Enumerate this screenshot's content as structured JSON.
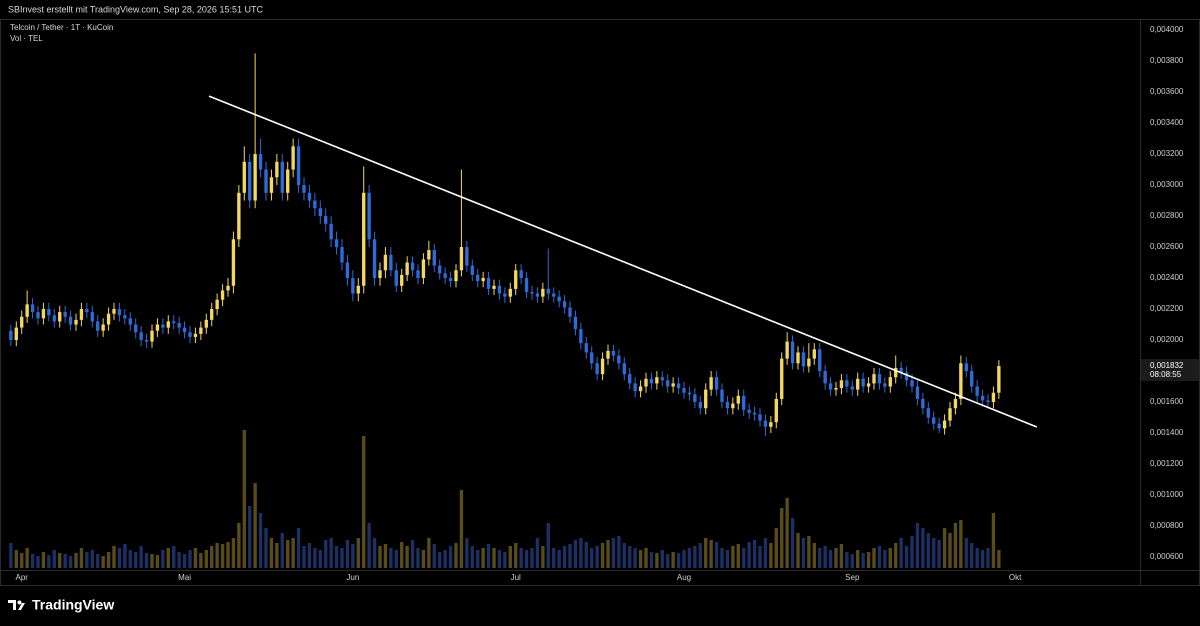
{
  "header": {
    "credit": "SBInvest erstellt mit TradingView.com, Sep 28, 2026 15:51 UTC"
  },
  "footer": {
    "brand": "TradingView"
  },
  "chart_data": {
    "type": "candlestick",
    "title": "Telcoin / Tether · 1T · KuCoin",
    "volume_label": "Vol · TEL",
    "up_color": "#f3d75e",
    "down_color": "#2e6bd9",
    "volume_up_color": "#5a4c1a",
    "volume_down_color": "#1d2f63",
    "trendline_color": "#ffffff",
    "xlim": [
      -2,
      208
    ],
    "xticks": [
      {
        "value": 2,
        "label": "Apr"
      },
      {
        "value": 32,
        "label": "Mai"
      },
      {
        "value": 63,
        "label": "Jun"
      },
      {
        "value": 93,
        "label": "Jul"
      },
      {
        "value": 124,
        "label": "Aug"
      },
      {
        "value": 155,
        "label": "Sep"
      },
      {
        "value": 185,
        "label": "Okt"
      }
    ],
    "ylim": [
      0.000516,
      0.004065
    ],
    "yticks": [
      {
        "value": 0.0006,
        "label": "0,000600"
      },
      {
        "value": 0.0008,
        "label": "0,000800"
      },
      {
        "value": 0.001,
        "label": "0,001000"
      },
      {
        "value": 0.0012,
        "label": "0,001200"
      },
      {
        "value": 0.0014,
        "label": "0,001400"
      },
      {
        "value": 0.0016,
        "label": "0,001600"
      },
      {
        "value": 0.0018,
        "label": "0,001800"
      },
      {
        "value": 0.002,
        "label": "0,002000"
      },
      {
        "value": 0.0022,
        "label": "0,002200"
      },
      {
        "value": 0.0024,
        "label": "0,002400"
      },
      {
        "value": 0.0026,
        "label": "0,002600"
      },
      {
        "value": 0.0028,
        "label": "0,002800"
      },
      {
        "value": 0.003,
        "label": "0,003000"
      },
      {
        "value": 0.0032,
        "label": "0,003200"
      },
      {
        "value": 0.0034,
        "label": "0,003400"
      },
      {
        "value": 0.0036,
        "label": "0,003600"
      },
      {
        "value": 0.0038,
        "label": "0,003800"
      },
      {
        "value": 0.004,
        "label": "0,004000"
      }
    ],
    "grid": false,
    "last_price": {
      "value": 0.001832,
      "label": "0,001832"
    },
    "countdown": "08:08:55",
    "trendline": {
      "start": [
        36.5,
        0.003574
      ],
      "end": [
        189,
        0.001439
      ]
    },
    "open": [
      0.00206,
      0.002,
      0.00208,
      0.00215,
      0.00223,
      0.00218,
      0.00214,
      0.0022,
      0.00216,
      0.00212,
      0.00218,
      0.00215,
      0.0021,
      0.00213,
      0.0022,
      0.00218,
      0.00212,
      0.00206,
      0.0021,
      0.00217,
      0.0022,
      0.00216,
      0.00214,
      0.0021,
      0.00205,
      0.002,
      0.00199,
      0.00206,
      0.0021,
      0.00208,
      0.00212,
      0.00211,
      0.00208,
      0.00205,
      0.00202,
      0.00204,
      0.00208,
      0.00213,
      0.0022,
      0.00226,
      0.00232,
      0.00235,
      0.00265,
      0.00295,
      0.00315,
      0.0029,
      0.0032,
      0.0031,
      0.00295,
      0.00305,
      0.00315,
      0.00295,
      0.0031,
      0.00325,
      0.003,
      0.00295,
      0.0029,
      0.00285,
      0.0028,
      0.00275,
      0.00265,
      0.0026,
      0.0025,
      0.0024,
      0.0023,
      0.00235,
      0.00295,
      0.00265,
      0.0024,
      0.00245,
      0.00255,
      0.00245,
      0.00235,
      0.00242,
      0.0025,
      0.00245,
      0.0024,
      0.00252,
      0.00258,
      0.00248,
      0.00243,
      0.0024,
      0.00238,
      0.00245,
      0.0026,
      0.00248,
      0.00242,
      0.00238,
      0.0024,
      0.00233,
      0.00235,
      0.0023,
      0.00228,
      0.00233,
      0.00245,
      0.0024,
      0.00231,
      0.0023,
      0.00228,
      0.00233,
      0.0023,
      0.00228,
      0.00225,
      0.00221,
      0.00215,
      0.00207,
      0.00198,
      0.00192,
      0.00185,
      0.00178,
      0.00188,
      0.00193,
      0.0019,
      0.00185,
      0.00178,
      0.00172,
      0.00167,
      0.0017,
      0.00175,
      0.00172,
      0.00176,
      0.00174,
      0.0017,
      0.00172,
      0.00169,
      0.00166,
      0.00165,
      0.0016,
      0.00156,
      0.00168,
      0.00176,
      0.00168,
      0.0016,
      0.00156,
      0.00159,
      0.00164,
      0.00155,
      0.00153,
      0.00152,
      0.00148,
      0.00144,
      0.00147,
      0.00162,
      0.00188,
      0.00199,
      0.00185,
      0.00192,
      0.00183,
      0.00188,
      0.00194,
      0.0018,
      0.00172,
      0.00168,
      0.00169,
      0.00174,
      0.0017,
      0.00168,
      0.00175,
      0.0017,
      0.00172,
      0.00178,
      0.00172,
      0.0017,
      0.00176,
      0.00182,
      0.00179,
      0.00174,
      0.0017,
      0.00162,
      0.00156,
      0.0015,
      0.00146,
      0.00143,
      0.00148,
      0.00156,
      0.00162,
      0.00185,
      0.0018,
      0.0017,
      0.00164,
      0.00161,
      0.0016,
      0.00166
    ],
    "high": [
      0.0021,
      0.00212,
      0.00219,
      0.00232,
      0.00227,
      0.00222,
      0.00224,
      0.00224,
      0.0022,
      0.00222,
      0.00222,
      0.00219,
      0.00217,
      0.00224,
      0.00224,
      0.00222,
      0.00216,
      0.00214,
      0.00221,
      0.00224,
      0.00224,
      0.0022,
      0.00218,
      0.00214,
      0.00209,
      0.00204,
      0.0021,
      0.00214,
      0.00214,
      0.00216,
      0.00216,
      0.00215,
      0.00212,
      0.00209,
      0.00208,
      0.00212,
      0.00217,
      0.00224,
      0.0023,
      0.00236,
      0.0024,
      0.0027,
      0.003,
      0.00325,
      0.0032,
      0.00385,
      0.0033,
      0.00315,
      0.0031,
      0.0032,
      0.0032,
      0.00315,
      0.0033,
      0.0033,
      0.00305,
      0.003,
      0.00295,
      0.0029,
      0.00285,
      0.0028,
      0.0027,
      0.00265,
      0.00255,
      0.00245,
      0.0024,
      0.00312,
      0.003,
      0.0027,
      0.0025,
      0.0026,
      0.0026,
      0.0025,
      0.00246,
      0.00254,
      0.00254,
      0.00249,
      0.00256,
      0.00264,
      0.00262,
      0.00252,
      0.00247,
      0.00244,
      0.00249,
      0.0031,
      0.00264,
      0.00252,
      0.00246,
      0.00244,
      0.00244,
      0.00239,
      0.00239,
      0.00234,
      0.00237,
      0.00249,
      0.00249,
      0.00244,
      0.00235,
      0.00234,
      0.00237,
      0.00259,
      0.00234,
      0.00232,
      0.00229,
      0.00225,
      0.00219,
      0.00211,
      0.00202,
      0.00196,
      0.00189,
      0.00192,
      0.00197,
      0.00197,
      0.00194,
      0.00189,
      0.00182,
      0.00176,
      0.00174,
      0.00179,
      0.00179,
      0.0018,
      0.0018,
      0.00178,
      0.00176,
      0.00176,
      0.00173,
      0.0017,
      0.00169,
      0.00164,
      0.00172,
      0.0018,
      0.0018,
      0.00172,
      0.00164,
      0.00163,
      0.00168,
      0.00168,
      0.00159,
      0.00157,
      0.00156,
      0.00152,
      0.00151,
      0.00166,
      0.00192,
      0.00205,
      0.00203,
      0.00196,
      0.00196,
      0.00198,
      0.00198,
      0.00198,
      0.00184,
      0.00176,
      0.00173,
      0.00178,
      0.00178,
      0.00174,
      0.00179,
      0.00179,
      0.00176,
      0.00182,
      0.00182,
      0.00176,
      0.0018,
      0.0019,
      0.00186,
      0.00183,
      0.00178,
      0.00174,
      0.00166,
      0.0016,
      0.00154,
      0.0015,
      0.00152,
      0.0016,
      0.00166,
      0.0019,
      0.00189,
      0.00184,
      0.00174,
      0.00168,
      0.00165,
      0.0017,
      0.00187
    ],
    "low": [
      0.00196,
      0.00196,
      0.00204,
      0.00211,
      0.00214,
      0.0021,
      0.0021,
      0.00212,
      0.00208,
      0.00208,
      0.00211,
      0.00206,
      0.00206,
      0.00209,
      0.00214,
      0.00208,
      0.00202,
      0.00202,
      0.00206,
      0.00213,
      0.00212,
      0.0021,
      0.00206,
      0.00201,
      0.00196,
      0.00195,
      0.00195,
      0.00202,
      0.00204,
      0.00204,
      0.00207,
      0.00204,
      0.00201,
      0.00198,
      0.00198,
      0.002,
      0.00204,
      0.00209,
      0.00216,
      0.00222,
      0.00228,
      0.0023,
      0.0026,
      0.0029,
      0.00285,
      0.00285,
      0.00305,
      0.0029,
      0.0029,
      0.003,
      0.0029,
      0.0029,
      0.00305,
      0.00295,
      0.0029,
      0.00285,
      0.0028,
      0.00275,
      0.0027,
      0.0026,
      0.00255,
      0.00245,
      0.00235,
      0.00225,
      0.00225,
      0.0023,
      0.0026,
      0.00235,
      0.00235,
      0.0024,
      0.00241,
      0.00231,
      0.00231,
      0.00238,
      0.00241,
      0.00236,
      0.00236,
      0.00248,
      0.00244,
      0.00239,
      0.00236,
      0.00234,
      0.00234,
      0.00241,
      0.00244,
      0.00238,
      0.00234,
      0.00234,
      0.00229,
      0.00229,
      0.00226,
      0.00224,
      0.00224,
      0.00229,
      0.00236,
      0.00227,
      0.00226,
      0.00224,
      0.00224,
      0.00226,
      0.00224,
      0.00221,
      0.00217,
      0.00211,
      0.00203,
      0.00194,
      0.00188,
      0.00181,
      0.00174,
      0.00174,
      0.00184,
      0.00186,
      0.00181,
      0.00174,
      0.00168,
      0.00163,
      0.00163,
      0.00166,
      0.00168,
      0.00168,
      0.0017,
      0.00166,
      0.00166,
      0.00165,
      0.00162,
      0.00161,
      0.00156,
      0.00152,
      0.00152,
      0.00164,
      0.00164,
      0.00156,
      0.00152,
      0.00152,
      0.00155,
      0.00151,
      0.00149,
      0.00148,
      0.00144,
      0.00138,
      0.0014,
      0.00143,
      0.00158,
      0.00184,
      0.00181,
      0.00181,
      0.00179,
      0.00179,
      0.00184,
      0.00176,
      0.00168,
      0.00164,
      0.00164,
      0.00165,
      0.00166,
      0.00164,
      0.00164,
      0.00166,
      0.00166,
      0.00168,
      0.00168,
      0.00166,
      0.00166,
      0.00172,
      0.00175,
      0.0017,
      0.00166,
      0.00158,
      0.00152,
      0.00146,
      0.00142,
      0.0014,
      0.00139,
      0.00144,
      0.00152,
      0.00158,
      0.00176,
      0.00166,
      0.0016,
      0.00157,
      0.00156,
      0.00156,
      0.00162
    ],
    "close": [
      0.002,
      0.00208,
      0.00215,
      0.00223,
      0.00218,
      0.00214,
      0.0022,
      0.00216,
      0.00212,
      0.00218,
      0.00215,
      0.0021,
      0.00213,
      0.0022,
      0.00218,
      0.00212,
      0.00206,
      0.0021,
      0.00217,
      0.0022,
      0.00216,
      0.00214,
      0.0021,
      0.00205,
      0.002,
      0.00199,
      0.00206,
      0.0021,
      0.00208,
      0.00212,
      0.00211,
      0.00208,
      0.00205,
      0.00202,
      0.00204,
      0.00208,
      0.00213,
      0.0022,
      0.00226,
      0.00232,
      0.00235,
      0.00265,
      0.00295,
      0.00315,
      0.0029,
      0.0032,
      0.0031,
      0.00295,
      0.00305,
      0.00315,
      0.00295,
      0.0031,
      0.00325,
      0.003,
      0.00295,
      0.0029,
      0.00285,
      0.0028,
      0.00275,
      0.00265,
      0.0026,
      0.0025,
      0.0024,
      0.0023,
      0.00235,
      0.00295,
      0.00265,
      0.0024,
      0.00245,
      0.00255,
      0.00245,
      0.00235,
      0.00242,
      0.0025,
      0.00245,
      0.0024,
      0.00252,
      0.00258,
      0.00248,
      0.00243,
      0.0024,
      0.00238,
      0.00245,
      0.0026,
      0.00248,
      0.00242,
      0.00238,
      0.0024,
      0.00233,
      0.00235,
      0.0023,
      0.00228,
      0.00233,
      0.00245,
      0.0024,
      0.00231,
      0.0023,
      0.00228,
      0.00233,
      0.0023,
      0.00228,
      0.00225,
      0.00221,
      0.00215,
      0.00207,
      0.00198,
      0.00192,
      0.00185,
      0.00178,
      0.00188,
      0.00193,
      0.0019,
      0.00185,
      0.00178,
      0.00172,
      0.00167,
      0.0017,
      0.00175,
      0.00172,
      0.00176,
      0.00174,
      0.0017,
      0.00172,
      0.00169,
      0.00166,
      0.00165,
      0.0016,
      0.00156,
      0.00168,
      0.00176,
      0.00168,
      0.0016,
      0.00156,
      0.00159,
      0.00164,
      0.00155,
      0.00153,
      0.00152,
      0.00148,
      0.00144,
      0.00147,
      0.00162,
      0.00188,
      0.00199,
      0.00185,
      0.00192,
      0.00183,
      0.00188,
      0.00194,
      0.0018,
      0.00172,
      0.00168,
      0.00169,
      0.00174,
      0.0017,
      0.00168,
      0.00175,
      0.0017,
      0.00172,
      0.00178,
      0.00172,
      0.0017,
      0.00176,
      0.00182,
      0.00179,
      0.00174,
      0.0017,
      0.00162,
      0.00156,
      0.0015,
      0.00146,
      0.00143,
      0.00148,
      0.00156,
      0.00162,
      0.00185,
      0.0018,
      0.0017,
      0.00164,
      0.00161,
      0.0016,
      0.00166,
      0.001832
    ],
    "volume": [
      25,
      18,
      15,
      20,
      14,
      12,
      16,
      13,
      18,
      15,
      14,
      12,
      15,
      20,
      16,
      18,
      14,
      12,
      16,
      22,
      20,
      24,
      18,
      16,
      22,
      15,
      14,
      13,
      18,
      20,
      22,
      16,
      14,
      18,
      20,
      15,
      18,
      22,
      25,
      24,
      26,
      30,
      45,
      138,
      62,
      85,
      55,
      40,
      30,
      25,
      35,
      28,
      30,
      40,
      22,
      25,
      20,
      18,
      28,
      30,
      22,
      20,
      28,
      24,
      30,
      132,
      45,
      30,
      22,
      24,
      20,
      18,
      26,
      22,
      28,
      20,
      18,
      30,
      24,
      16,
      18,
      22,
      25,
      78,
      30,
      22,
      18,
      20,
      24,
      20,
      18,
      16,
      22,
      25,
      20,
      18,
      20,
      30,
      22,
      45,
      20,
      18,
      22,
      24,
      28,
      30,
      26,
      20,
      22,
      25,
      28,
      30,
      32,
      25,
      22,
      20,
      18,
      20,
      16,
      15,
      18,
      14,
      16,
      15,
      18,
      20,
      22,
      25,
      30,
      28,
      26,
      20,
      18,
      22,
      24,
      20,
      26,
      28,
      22,
      30,
      25,
      40,
      60,
      70,
      50,
      35,
      30,
      32,
      25,
      20,
      22,
      18,
      20,
      24,
      16,
      14,
      18,
      15,
      16,
      20,
      22,
      18,
      20,
      25,
      30,
      22,
      32,
      45,
      40,
      35,
      30,
      28,
      40,
      35,
      45,
      48,
      30,
      25,
      20,
      18,
      20,
      55,
      18
    ]
  }
}
